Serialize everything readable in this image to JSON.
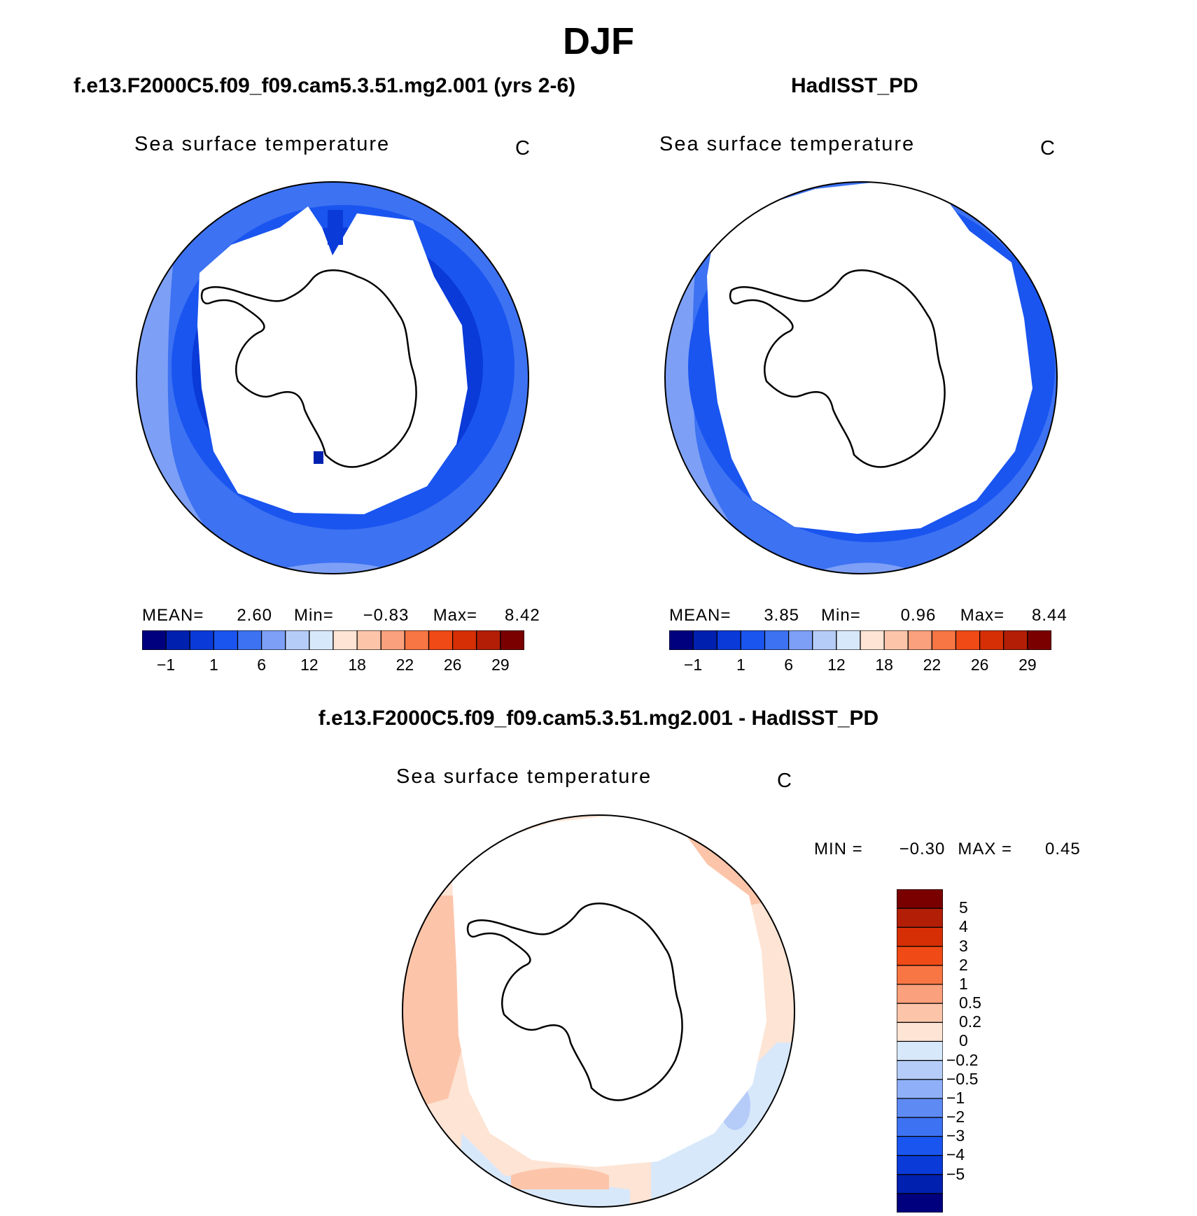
{
  "page": {
    "title": "DJF",
    "panel_titles": {
      "model": "f.e13.F2000C5.f09_f09.cam5.3.51.mg2.001 (yrs 2-6)",
      "obs": "HadISST_PD",
      "diff": "f.e13.F2000C5.f09_f09.cam5.3.51.mg2.001 - HadISST_PD"
    }
  },
  "panels": {
    "model": {
      "field": "Sea surface temperature",
      "units": "C",
      "mean_label": "MEAN=",
      "mean": "2.60",
      "min_label": "Min=",
      "min": "−0.83",
      "max_label": "Max=",
      "max": "8.42"
    },
    "obs": {
      "field": "Sea surface temperature",
      "units": "C",
      "mean_label": "MEAN=",
      "mean": "3.85",
      "min_label": "Min=",
      "min": "0.96",
      "max_label": "Max=",
      "max": "8.44"
    },
    "diff": {
      "field": "Sea surface temperature",
      "units": "C",
      "min_label": "MIN =",
      "min": "−0.30",
      "max_label": "MAX =",
      "max": "0.45"
    }
  },
  "colorbars": {
    "sst": {
      "colors": [
        "#00007f",
        "#0020b0",
        "#0a3ad8",
        "#1a55f0",
        "#3d72f2",
        "#7da0f6",
        "#b6ccf8",
        "#d8e8fb",
        "#fde4d4",
        "#fcc5aa",
        "#faa07c",
        "#f87544",
        "#f04a16",
        "#d62f05",
        "#b31e07",
        "#7a0000"
      ],
      "tick_labels": [
        "−1",
        "1",
        "6",
        "12",
        "18",
        "22",
        "26",
        "29"
      ]
    },
    "diff": {
      "colors": [
        "#00007f",
        "#0020b0",
        "#0a3ad8",
        "#1a55f0",
        "#3d72f2",
        "#5e8af4",
        "#8fb0f8",
        "#b6ccf8",
        "#d8e8fb",
        "#fde4d4",
        "#fcc5aa",
        "#faa07c",
        "#f87544",
        "#f04a16",
        "#d62f05",
        "#b31e07",
        "#7a0000"
      ],
      "tick_labels": [
        "5",
        "4",
        "3",
        "2",
        "1",
        "0.5",
        "0.2",
        "0",
        "−0.2",
        "−0.5",
        "−1",
        "−2",
        "−3",
        "−4",
        "−5"
      ]
    }
  }
}
